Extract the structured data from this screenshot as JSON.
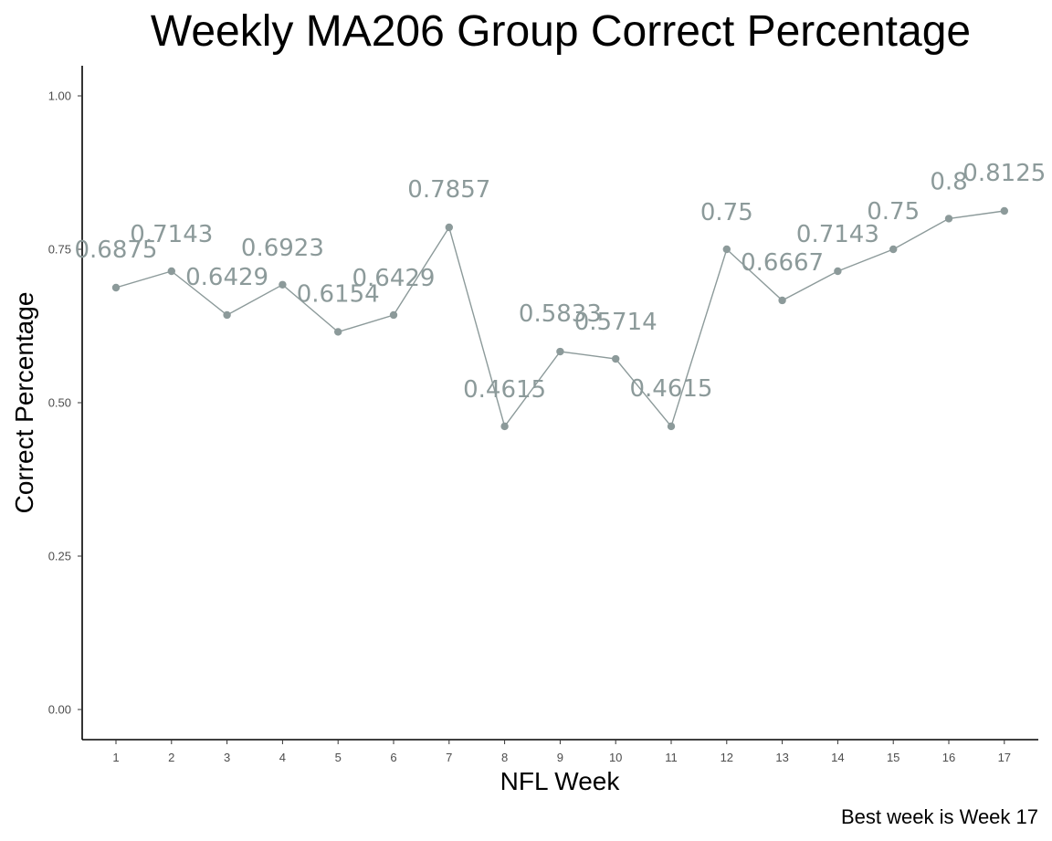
{
  "chart_data": {
    "type": "line",
    "title": "Weekly MA206 Group Correct Percentage",
    "xlabel": "NFL Week",
    "ylabel": "Correct Percentage",
    "caption": "Best week is Week 17",
    "x": [
      1,
      2,
      3,
      4,
      5,
      6,
      7,
      8,
      9,
      10,
      11,
      12,
      13,
      14,
      15,
      16,
      17
    ],
    "values": [
      0.6875,
      0.7143,
      0.6429,
      0.6923,
      0.6154,
      0.6429,
      0.7857,
      0.4615,
      0.5833,
      0.5714,
      0.4615,
      0.75,
      0.6667,
      0.7143,
      0.75,
      0.8,
      0.8125
    ],
    "data_labels": [
      "0.6875",
      "0.7143",
      "0.6429",
      "0.6923",
      "0.6154",
      "0.6429",
      "0.7857",
      "0.4615",
      "0.5833",
      "0.5714",
      "0.4615",
      "0.75",
      "0.6667",
      "0.7143",
      "0.75",
      "0.8",
      "0.8125"
    ],
    "x_tick_labels": [
      "1",
      "2",
      "3",
      "4",
      "5",
      "6",
      "7",
      "8",
      "9",
      "10",
      "11",
      "12",
      "13",
      "14",
      "15",
      "16",
      "17"
    ],
    "y_ticks": [
      0,
      0.25,
      0.5,
      0.75,
      1
    ],
    "y_tick_labels": [
      "0.00",
      "0.25",
      "0.50",
      "0.75",
      "1.00"
    ],
    "ylim": [
      0,
      1
    ],
    "grid": false,
    "legend": "none",
    "colors": {
      "line": "#8c9a9a",
      "label": "#8c9a9a",
      "axis": "#000000"
    }
  }
}
